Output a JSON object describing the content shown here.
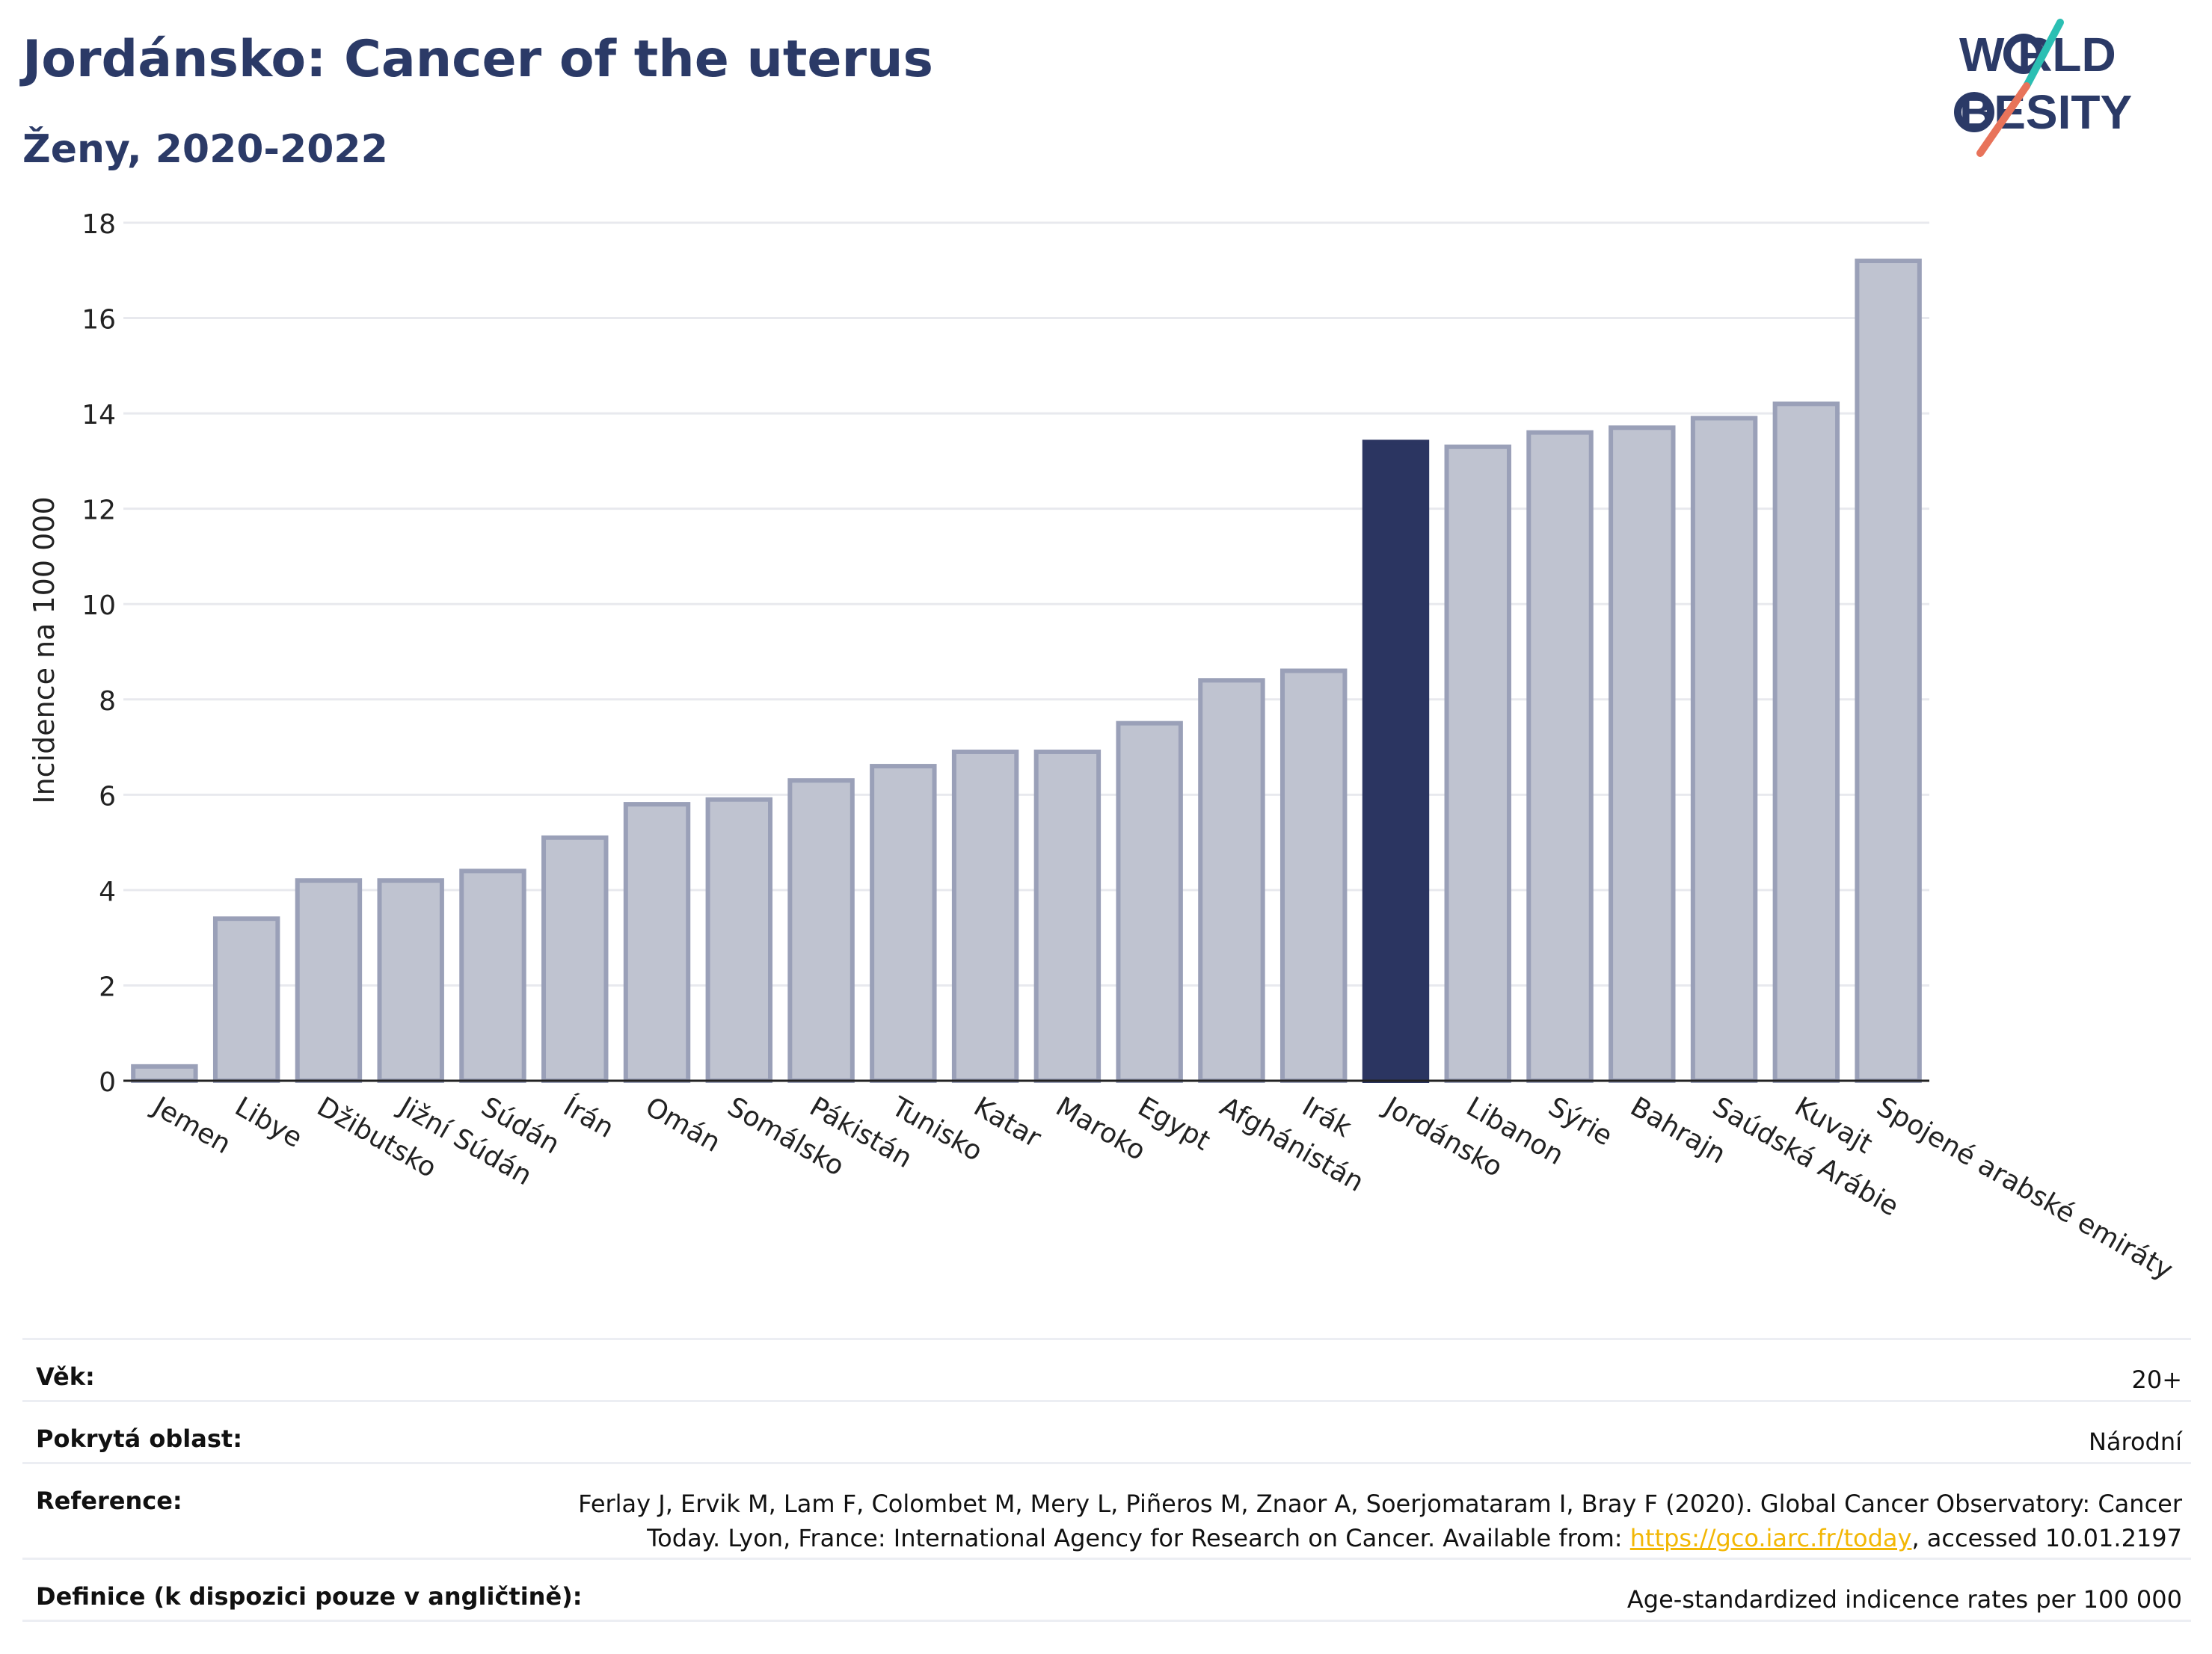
{
  "header": {
    "title": "Jordánsko: Cancer of the uterus",
    "subtitle": "Ženy, 2020-2022"
  },
  "logo": {
    "line1": "W RLD",
    "line2": "BESITY",
    "brand": "WORLD OBESITY",
    "colors": {
      "text": "#2b3a67",
      "teal": "#2bbfb3",
      "coral": "#e8735a"
    }
  },
  "colors": {
    "bar_fill": "#bfc3d0",
    "bar_stroke": "#9aa0b8",
    "highlight": "#2b3561",
    "grid": "#e8e9ee",
    "axis": "#222222"
  },
  "chart_data": {
    "type": "bar",
    "ylabel": "Incidence na 100 000",
    "ylim": [
      0,
      18
    ],
    "yticks": [
      "0",
      "2",
      "4",
      "6",
      "8",
      "10",
      "12",
      "14",
      "16",
      "18"
    ],
    "grid": true,
    "highlight_category": "Jordánsko",
    "categories": [
      "Jemen",
      "Libye",
      "Džibutsko",
      "Jižní Súdán",
      "Súdán",
      "Írán",
      "Omán",
      "Somálsko",
      "Pákistán",
      "Tunisko",
      "Katar",
      "Maroko",
      "Egypt",
      "Afghánistán",
      "Irák",
      "Jordánsko",
      "Libanon",
      "Sýrie",
      "Bahrajn",
      "Saúdská Arábie",
      "Kuvajt",
      "Spojené arabské emiráty"
    ],
    "values": [
      0.3,
      3.4,
      4.2,
      4.2,
      4.4,
      5.1,
      5.8,
      5.9,
      6.3,
      6.6,
      6.9,
      6.9,
      7.5,
      8.4,
      8.6,
      13.4,
      13.3,
      13.6,
      13.7,
      13.9,
      14.2,
      17.2
    ]
  },
  "meta": {
    "age_label": "Věk:",
    "age_value": "20+",
    "coverage_label": "Pokrytá oblast:",
    "coverage_value": "Národní",
    "reference_label": "Reference:",
    "reference_line1": "Ferlay J, Ervik M, Lam F, Colombet M, Mery L, Piñeros M, Znaor A, Soerjomataram I, Bray F (2020). Global Cancer Observatory: Cancer",
    "reference_line2_pre": "Today. Lyon, France: International Agency for Research on Cancer. Available from: ",
    "reference_link": "https://gco.iarc.fr/today",
    "reference_line2_post": ", accessed 10.01.2197",
    "definition_label": "Definice (k dispozici pouze v angličtině):",
    "definition_value": "Age-standardized indicence rates per 100 000"
  }
}
